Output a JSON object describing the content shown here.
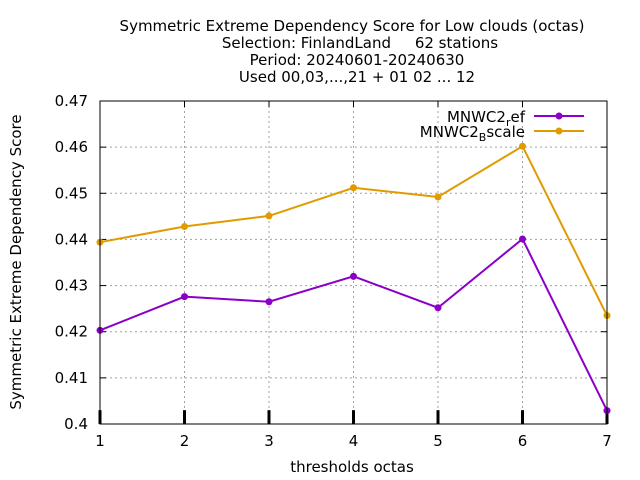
{
  "chart_data": {
    "type": "line",
    "title_lines": [
      "Symmetric Extreme Dependency Score  for Low clouds (octas)",
      "Selection: FinlandLand     62 stations",
      "Period: 20240601-20240630",
      "Used 00,03,...,21 + 01 02 ... 12"
    ],
    "xlabel": "thresholds octas",
    "ylabel": "Symmetric Extreme Dependency Score",
    "x": [
      1,
      2,
      3,
      4,
      5,
      6,
      7
    ],
    "xlim": [
      1,
      7
    ],
    "ylim": [
      0.4,
      0.47
    ],
    "xticks": [
      "1",
      "2",
      "3",
      "4",
      "5",
      "6",
      "7"
    ],
    "yticks": [
      "0.4",
      "0.41",
      "0.42",
      "0.43",
      "0.44",
      "0.45",
      "0.46",
      "0.47"
    ],
    "grid": true,
    "legend_position": "top-right",
    "series": [
      {
        "name": "MNWC2_ref",
        "legend_main": "MNWC2",
        "legend_sub": "r",
        "legend_tail": "ef",
        "color": "#8a00c8",
        "values": [
          0.4203,
          0.4276,
          0.4265,
          0.432,
          0.4252,
          0.4401,
          0.4029
        ]
      },
      {
        "name": "MNWC2_Bscale",
        "legend_main": "MNWC2",
        "legend_sub": "B",
        "legend_tail": "scale",
        "color": "#e09b00",
        "values": [
          0.4394,
          0.4428,
          0.4451,
          0.4512,
          0.4492,
          0.4602,
          0.4235
        ]
      }
    ]
  }
}
